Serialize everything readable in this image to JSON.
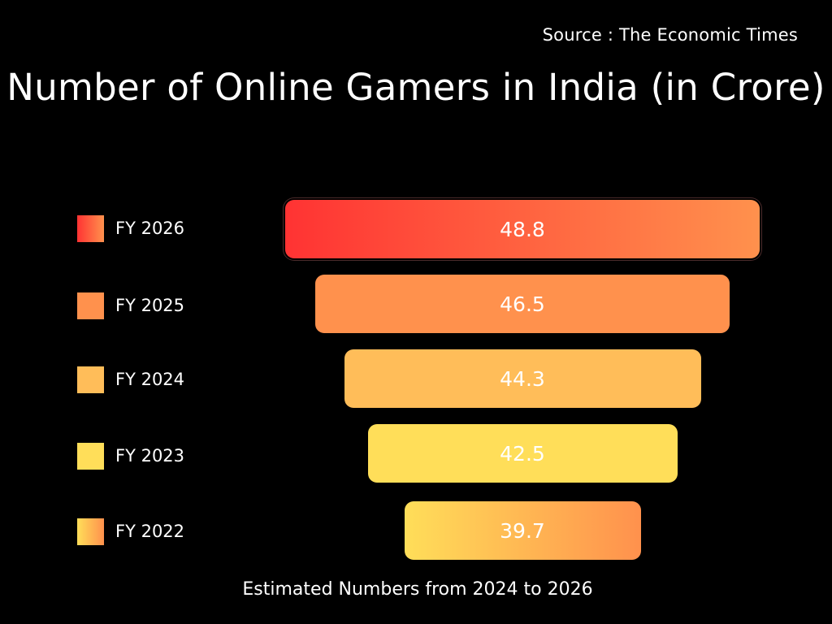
{
  "source": "Source : The Economic Times",
  "footnote": "Estimated Numbers from 2024 to 2026",
  "chart_data": {
    "type": "bar",
    "title": "Number of Online Gamers in India (in Crore)",
    "categories": [
      "FY 2026",
      "FY 2025",
      "FY 2024",
      "FY 2023",
      "FY 2022"
    ],
    "values": [
      48.8,
      46.5,
      44.3,
      42.5,
      39.7
    ],
    "colors": [
      [
        "#ff3333",
        "#ff914d"
      ],
      [
        "#ff914d",
        "#ff914d"
      ],
      [
        "#ffbd59",
        "#ffbd59"
      ],
      [
        "#ffde59",
        "#ffde59"
      ],
      [
        "#ffde59",
        "#ff914d"
      ]
    ],
    "legend": "left",
    "grid": false
  }
}
